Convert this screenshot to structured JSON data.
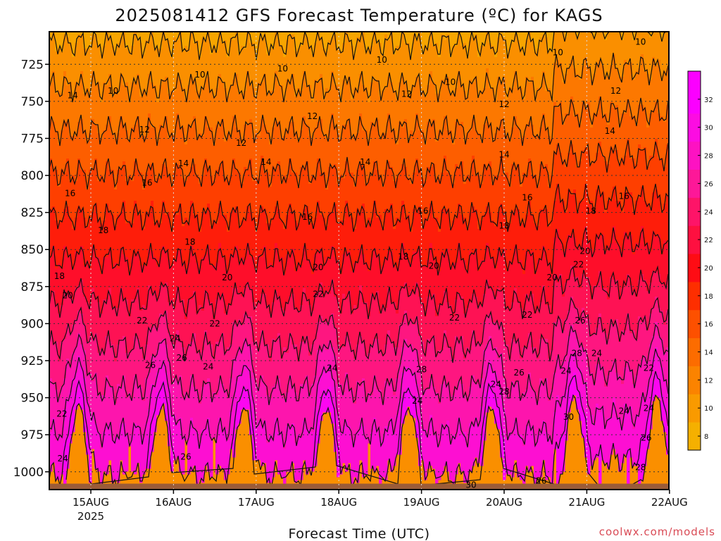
{
  "chart_data": {
    "type": "heatmap",
    "title": "2025081412 GFS Forecast Temperature (ºC) for KAGS",
    "xlabel": "Forecast Time (UTC)",
    "ylabel": "",
    "x_ticks": [
      "15AUG",
      "16AUG",
      "17AUG",
      "18AUG",
      "19AUG",
      "20AUG",
      "21AUG",
      "22AUG"
    ],
    "x_year_label": "2025",
    "y_ticks": [
      725,
      750,
      775,
      800,
      825,
      850,
      875,
      900,
      925,
      950,
      975,
      1000
    ],
    "ylim": [
      1012,
      703
    ],
    "xlim_days": [
      -0.35,
      7.0
    ],
    "colorbar": {
      "ticks": [
        8,
        10,
        12,
        14,
        16,
        18,
        20,
        22,
        24,
        26,
        28,
        30,
        32
      ],
      "colors": [
        "#f5b000",
        "#f99a00",
        "#fb8300",
        "#fc6c00",
        "#fd5000",
        "#fe2e00",
        "#fe0c14",
        "#fe1040",
        "#fe1468",
        "#fd1898",
        "#fd12c2",
        "#fc0ce2",
        "#fb00ff"
      ],
      "range": [
        7,
        34
      ]
    },
    "contour_labels": [
      {
        "t": 1.32,
        "p": 732,
        "v": "10"
      },
      {
        "t": 2.32,
        "p": 728,
        "v": "10"
      },
      {
        "t": 3.52,
        "p": 722,
        "v": "10"
      },
      {
        "t": 4.35,
        "p": 737,
        "v": "10"
      },
      {
        "t": 5.65,
        "p": 717,
        "v": "10"
      },
      {
        "t": 6.65,
        "p": 710,
        "v": "10"
      },
      {
        "t": 0.27,
        "p": 743,
        "v": "10"
      },
      {
        "t": -0.22,
        "p": 746,
        "v": "14"
      },
      {
        "t": 0.65,
        "p": 769,
        "v": "12"
      },
      {
        "t": 1.82,
        "p": 778,
        "v": "12"
      },
      {
        "t": 2.68,
        "p": 760,
        "v": "12"
      },
      {
        "t": 3.82,
        "p": 745,
        "v": "12"
      },
      {
        "t": 5.0,
        "p": 752,
        "v": "12"
      },
      {
        "t": 6.35,
        "p": 743,
        "v": "12"
      },
      {
        "t": 1.12,
        "p": 792,
        "v": "14"
      },
      {
        "t": 2.12,
        "p": 791,
        "v": "14"
      },
      {
        "t": 3.32,
        "p": 791,
        "v": "14"
      },
      {
        "t": 5.0,
        "p": 786,
        "v": "14"
      },
      {
        "t": 6.28,
        "p": 770,
        "v": "14"
      },
      {
        "t": -0.25,
        "p": 812,
        "v": "16"
      },
      {
        "t": 0.68,
        "p": 805,
        "v": "16"
      },
      {
        "t": 2.62,
        "p": 828,
        "v": "16"
      },
      {
        "t": 4.02,
        "p": 824,
        "v": "16"
      },
      {
        "t": 5.28,
        "p": 815,
        "v": "16"
      },
      {
        "t": 6.45,
        "p": 814,
        "v": "16"
      },
      {
        "t": 0.15,
        "p": 837,
        "v": "18"
      },
      {
        "t": 1.2,
        "p": 845,
        "v": "18"
      },
      {
        "t": 3.78,
        "p": 855,
        "v": "18"
      },
      {
        "t": 5.0,
        "p": 834,
        "v": "18"
      },
      {
        "t": 6.05,
        "p": 824,
        "v": "18"
      },
      {
        "t": -0.38,
        "p": 868,
        "v": "18"
      },
      {
        "t": 1.65,
        "p": 869,
        "v": "20"
      },
      {
        "t": 2.75,
        "p": 862,
        "v": "20"
      },
      {
        "t": 4.15,
        "p": 861,
        "v": "20"
      },
      {
        "t": 5.58,
        "p": 869,
        "v": "20"
      },
      {
        "t": 5.98,
        "p": 851,
        "v": "20"
      },
      {
        "t": -0.28,
        "p": 881,
        "v": "20"
      },
      {
        "t": 0.62,
        "p": 898,
        "v": "22"
      },
      {
        "t": 1.5,
        "p": 900,
        "v": "22"
      },
      {
        "t": 2.75,
        "p": 880,
        "v": "22"
      },
      {
        "t": 4.4,
        "p": 896,
        "v": "22"
      },
      {
        "t": 5.28,
        "p": 894,
        "v": "22"
      },
      {
        "t": 5.9,
        "p": 860,
        "v": "22"
      },
      {
        "t": 6.75,
        "p": 930,
        "v": "22"
      },
      {
        "t": -0.35,
        "p": 961,
        "v": "22"
      },
      {
        "t": 1.02,
        "p": 910,
        "v": "24"
      },
      {
        "t": 1.42,
        "p": 929,
        "v": "24"
      },
      {
        "t": 2.92,
        "p": 930,
        "v": "24"
      },
      {
        "t": 3.95,
        "p": 952,
        "v": "24"
      },
      {
        "t": 4.9,
        "p": 941,
        "v": "24"
      },
      {
        "t": 5.75,
        "p": 932,
        "v": "24"
      },
      {
        "t": 6.12,
        "p": 920,
        "v": "24"
      },
      {
        "t": 6.45,
        "p": 959,
        "v": "24"
      },
      {
        "t": 6.75,
        "p": 957,
        "v": "24"
      },
      {
        "t": -0.34,
        "p": 991,
        "v": "24"
      },
      {
        "t": 0.72,
        "p": 928,
        "v": "26"
      },
      {
        "t": 1.1,
        "p": 923,
        "v": "26"
      },
      {
        "t": 1.15,
        "p": 990,
        "v": "26"
      },
      {
        "t": 5.18,
        "p": 933,
        "v": "26"
      },
      {
        "t": 5.92,
        "p": 898,
        "v": "26"
      },
      {
        "t": 6.72,
        "p": 977,
        "v": "26"
      },
      {
        "t": 5.45,
        "p": 1006,
        "v": "26"
      },
      {
        "t": 4.0,
        "p": 931,
        "v": "28"
      },
      {
        "t": 5.0,
        "p": 946,
        "v": "28"
      },
      {
        "t": 5.88,
        "p": 920,
        "v": "28"
      },
      {
        "t": 6.65,
        "p": 997,
        "v": "28"
      },
      {
        "t": 5.78,
        "p": 963,
        "v": "30"
      },
      {
        "t": 4.6,
        "p": 1009,
        "v": "30"
      }
    ]
  },
  "credit": "coolwx.com/models"
}
